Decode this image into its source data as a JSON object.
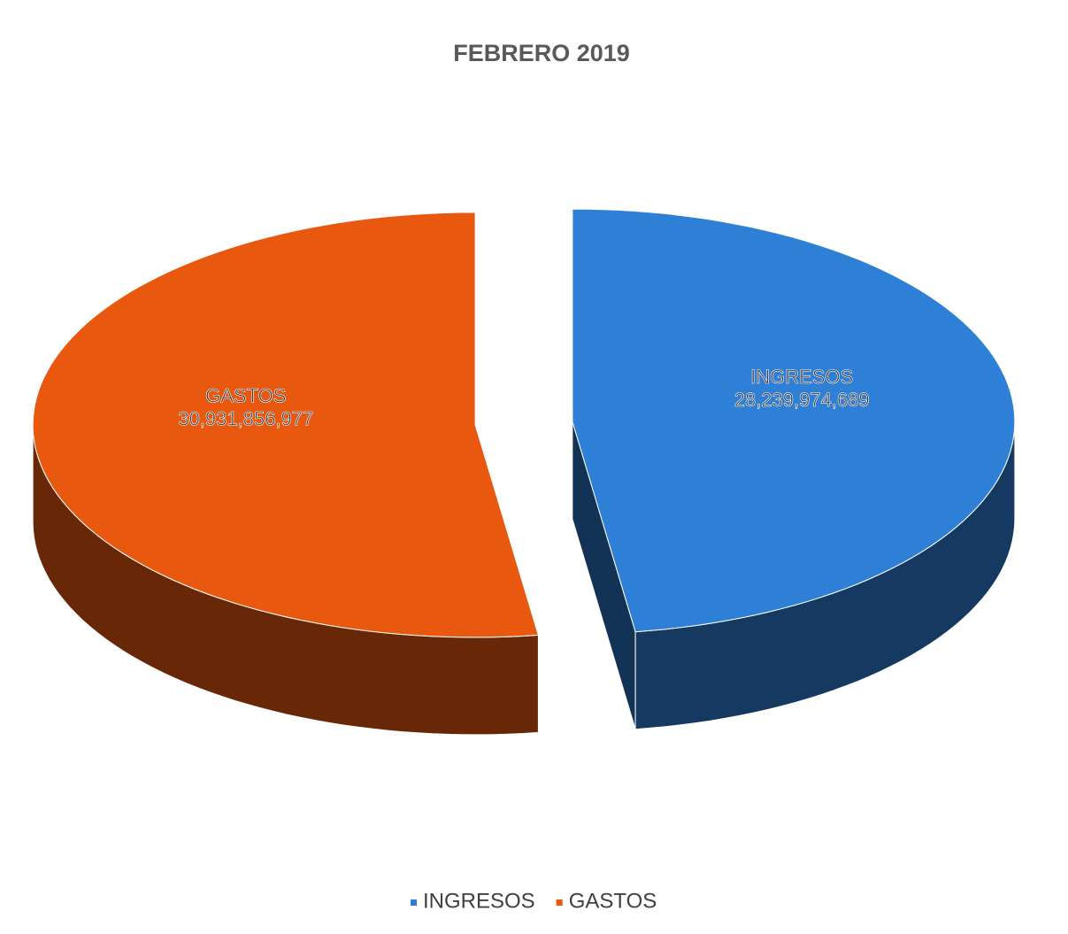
{
  "chart_data": {
    "type": "pie3d",
    "title": "FEBRERO 2019",
    "categories": [
      "INGRESOS",
      "GASTOS"
    ],
    "values": [
      28239974689,
      30931856977
    ],
    "value_labels": [
      "28,239,974,689",
      "30,931,856,977"
    ],
    "colors": [
      "#2e7fd6",
      "#e8590f"
    ],
    "legend": "bottom"
  }
}
